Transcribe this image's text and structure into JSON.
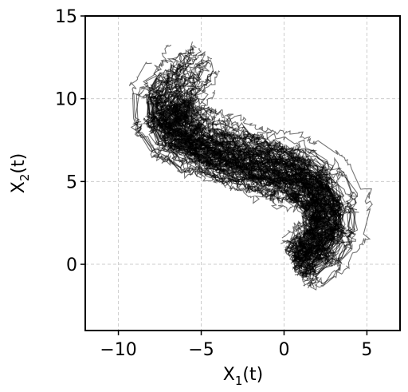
{
  "chart_data": {
    "type": "line",
    "title": "",
    "xlabel": {
      "base": "X",
      "sub": "1",
      "suffix": "(t)"
    },
    "ylabel": {
      "base": "X",
      "sub": "2",
      "suffix": "(t)"
    },
    "xlim": [
      -12,
      7
    ],
    "ylim": [
      -4,
      15
    ],
    "xticks": [
      -10,
      -5,
      0,
      5
    ],
    "xtick_labels": [
      "−10",
      "−5",
      "0",
      "5"
    ],
    "yticks": [
      0,
      5,
      10,
      15
    ],
    "ytick_labels": [
      "0",
      "5",
      "10",
      "15"
    ],
    "grid": true,
    "legend": "none",
    "line_color": "#000000",
    "line_alpha": 0.55,
    "trajectory_count": 100,
    "mean_path": [
      [
        0.5,
        0.2
      ],
      [
        1.5,
        0.7
      ],
      [
        2.2,
        1.5
      ],
      [
        2.6,
        2.7
      ],
      [
        2.3,
        4.0
      ],
      [
        1.3,
        5.0
      ],
      [
        -0.2,
        5.6
      ],
      [
        -2.0,
        6.0
      ],
      [
        -4.0,
        6.6
      ],
      [
        -5.8,
        7.3
      ],
      [
        -7.0,
        8.3
      ],
      [
        -7.4,
        9.4
      ],
      [
        -6.9,
        10.4
      ],
      [
        -6.1,
        11.2
      ],
      [
        -5.4,
        12.0
      ],
      [
        -4.8,
        12.8
      ]
    ]
  }
}
